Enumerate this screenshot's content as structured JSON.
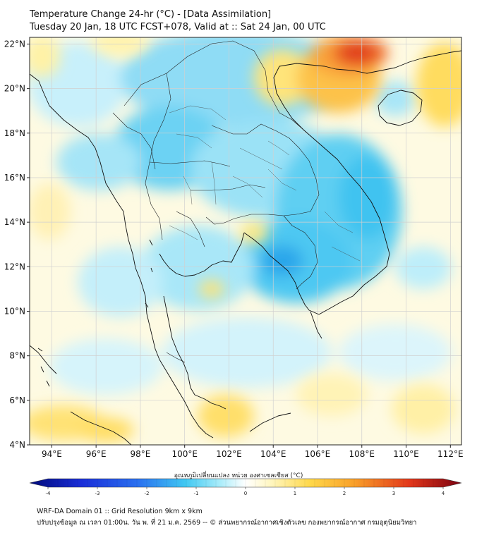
{
  "header": {
    "title_line1": "Temperature Change 24-hr (°C) - [Data Assimilation]",
    "title_line2": "Tuesday 20 Jan, 18 UTC FCST+078, Valid at :: Sat 24 Jan, 00 UTC"
  },
  "map": {
    "lon_ticks": [
      94,
      96,
      98,
      100,
      102,
      104,
      106,
      108,
      110,
      112
    ],
    "lon_labels": [
      "94°E",
      "96°E",
      "98°E",
      "100°E",
      "102°E",
      "104°E",
      "106°E",
      "108°E",
      "110°E",
      "112°E"
    ],
    "lat_ticks": [
      22,
      20,
      18,
      16,
      14,
      12,
      10,
      8,
      6,
      4
    ],
    "lat_labels": [
      "22°N",
      "20°N",
      "18°N",
      "16°N",
      "14°N",
      "12°N",
      "10°N",
      "8°N",
      "6°N",
      "4°N"
    ],
    "lon_range": [
      93,
      112.5
    ],
    "lat_range": [
      4,
      22.3
    ]
  },
  "colorbar": {
    "label": "อุณหภูมิเปลี่ยนแปลง หน่วย องศาเซลเซียส (°C)",
    "min": -4,
    "max": 4,
    "tick_labels": [
      "-4",
      "-3",
      "-2",
      "-1",
      "0",
      "1",
      "2",
      "3",
      "4"
    ]
  },
  "footer": {
    "line1": "WRF-DA Domain 01 :: Grid Resolution 9km x 9km",
    "line2": "ปรับปรุงข้อมูล ณ เวลา 01:00น. วัน พ. ที่ 21 ม.ค. 2569 -- © ส่วนพยากรณ์อากาศเชิงตัวเลข กองพยากรณ์อากาศ กรมอุตุนิยมวิทยา"
  },
  "colors": {
    "strong_cool": "#1e90ff",
    "cool": "#5ed3f3",
    "light_cool": "#bfeffa",
    "neutral": "#ffffff",
    "light_warm": "#fff3b0",
    "warm": "#ffd23c",
    "hot": "#f07a1e",
    "very_hot": "#d8261a"
  }
}
